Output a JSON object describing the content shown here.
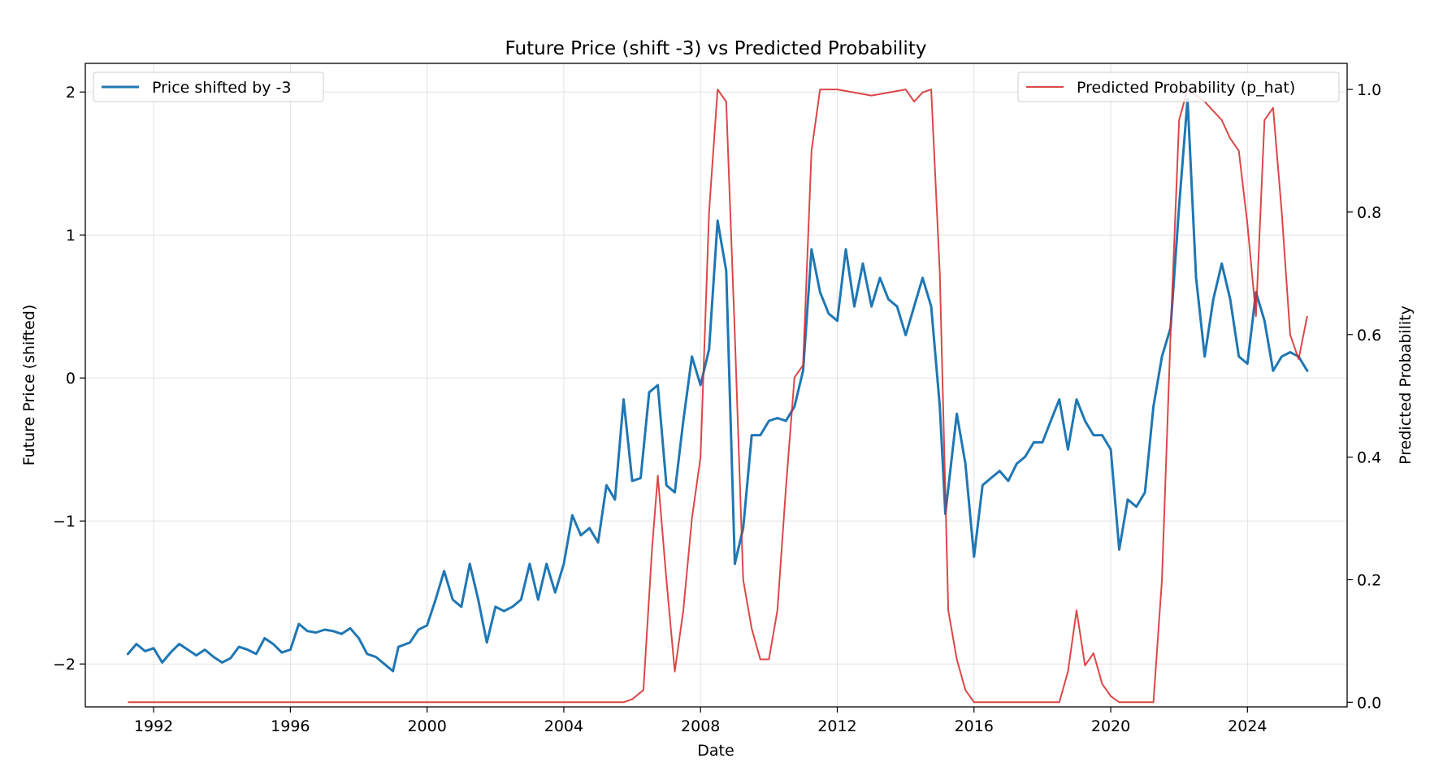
{
  "chart_data": {
    "type": "line",
    "title": "Future Price (shift -3) vs Predicted Probability",
    "xlabel": "Date",
    "ylabel": "Future Price (shifted)",
    "ylabel_right": "Predicted Probability",
    "xlim": [
      "1990-01-01",
      "2026-12-01"
    ],
    "ylim": [
      -2.3,
      2.2
    ],
    "ylim_right": [
      -0.0075,
      1.0425
    ],
    "x_ticks": [
      "1992",
      "1996",
      "2000",
      "2004",
      "2008",
      "2012",
      "2016",
      "2020",
      "2024"
    ],
    "y_ticks": [
      "−2",
      "−1",
      "0",
      "1",
      "2"
    ],
    "y_tick_values": [
      -2,
      -1,
      0,
      1,
      2
    ],
    "y_ticks_right": [
      "0.0",
      "0.2",
      "0.4",
      "0.6",
      "0.8",
      "1.0"
    ],
    "y_tick_values_right": [
      0,
      0.2,
      0.4,
      0.6,
      0.8,
      1.0
    ],
    "grid": true,
    "legend_left": {
      "placement": "upper-left",
      "label": "Price shifted by -3"
    },
    "legend_right": {
      "placement": "upper-right",
      "label": "Predicted Probability (p_hat)"
    },
    "colors": {
      "price": "#1f77b4",
      "probability": "#d62728"
    },
    "series": [
      {
        "name": "Price shifted by -3",
        "axis": "left",
        "points": [
          [
            "1991-04-01",
            -1.93
          ],
          [
            "1991-07-01",
            -1.86
          ],
          [
            "1991-10-01",
            -1.91
          ],
          [
            "1992-01-01",
            -1.89
          ],
          [
            "1992-04-01",
            -1.99
          ],
          [
            "1992-07-01",
            -1.92
          ],
          [
            "1992-10-01",
            -1.86
          ],
          [
            "1993-01-01",
            -1.9
          ],
          [
            "1993-04-01",
            -1.94
          ],
          [
            "1993-07-01",
            -1.9
          ],
          [
            "1993-10-01",
            -1.95
          ],
          [
            "1994-01-01",
            -1.99
          ],
          [
            "1994-04-01",
            -1.96
          ],
          [
            "1994-07-01",
            -1.88
          ],
          [
            "1994-10-01",
            -1.9
          ],
          [
            "1995-01-01",
            -1.93
          ],
          [
            "1995-04-01",
            -1.82
          ],
          [
            "1995-07-01",
            -1.86
          ],
          [
            "1995-10-01",
            -1.92
          ],
          [
            "1996-01-01",
            -1.9
          ],
          [
            "1996-04-01",
            -1.72
          ],
          [
            "1996-07-01",
            -1.77
          ],
          [
            "1996-10-01",
            -1.78
          ],
          [
            "1997-01-01",
            -1.76
          ],
          [
            "1997-04-01",
            -1.77
          ],
          [
            "1997-07-01",
            -1.79
          ],
          [
            "1997-10-01",
            -1.75
          ],
          [
            "1998-01-01",
            -1.82
          ],
          [
            "1998-04-01",
            -1.93
          ],
          [
            "1998-07-01",
            -1.95
          ],
          [
            "1998-10-01",
            -2.0
          ],
          [
            "1999-01-01",
            -2.05
          ],
          [
            "1999-03-01",
            -1.88
          ],
          [
            "1999-07-01",
            -1.85
          ],
          [
            "1999-10-01",
            -1.76
          ],
          [
            "2000-01-01",
            -1.73
          ],
          [
            "2000-04-01",
            -1.55
          ],
          [
            "2000-07-01",
            -1.35
          ],
          [
            "2000-10-01",
            -1.55
          ],
          [
            "2001-01-01",
            -1.6
          ],
          [
            "2001-04-01",
            -1.3
          ],
          [
            "2001-07-01",
            -1.55
          ],
          [
            "2001-10-01",
            -1.85
          ],
          [
            "2002-01-01",
            -1.6
          ],
          [
            "2002-04-01",
            -1.63
          ],
          [
            "2002-07-01",
            -1.6
          ],
          [
            "2002-10-01",
            -1.55
          ],
          [
            "2003-01-01",
            -1.3
          ],
          [
            "2003-04-01",
            -1.55
          ],
          [
            "2003-07-01",
            -1.3
          ],
          [
            "2003-10-01",
            -1.5
          ],
          [
            "2004-01-01",
            -1.3
          ],
          [
            "2004-04-01",
            -0.96
          ],
          [
            "2004-07-01",
            -1.1
          ],
          [
            "2004-10-01",
            -1.05
          ],
          [
            "2005-01-01",
            -1.15
          ],
          [
            "2005-04-01",
            -0.75
          ],
          [
            "2005-07-01",
            -0.85
          ],
          [
            "2005-10-01",
            -0.15
          ],
          [
            "2006-01-01",
            -0.72
          ],
          [
            "2006-04-01",
            -0.7
          ],
          [
            "2006-07-01",
            -0.1
          ],
          [
            "2006-10-01",
            -0.05
          ],
          [
            "2007-01-01",
            -0.75
          ],
          [
            "2007-04-01",
            -0.8
          ],
          [
            "2007-07-01",
            -0.3
          ],
          [
            "2007-10-01",
            0.15
          ],
          [
            "2008-01-01",
            -0.05
          ],
          [
            "2008-04-01",
            0.2
          ],
          [
            "2008-07-01",
            1.1
          ],
          [
            "2008-10-01",
            0.75
          ],
          [
            "2009-01-01",
            -1.3
          ],
          [
            "2009-04-01",
            -1.05
          ],
          [
            "2009-07-01",
            -0.4
          ],
          [
            "2009-10-01",
            -0.4
          ],
          [
            "2010-01-01",
            -0.3
          ],
          [
            "2010-04-01",
            -0.28
          ],
          [
            "2010-07-01",
            -0.3
          ],
          [
            "2010-10-01",
            -0.2
          ],
          [
            "2011-01-01",
            0.05
          ],
          [
            "2011-04-01",
            0.9
          ],
          [
            "2011-07-01",
            0.6
          ],
          [
            "2011-10-01",
            0.45
          ],
          [
            "2012-01-01",
            0.4
          ],
          [
            "2012-04-01",
            0.9
          ],
          [
            "2012-07-01",
            0.5
          ],
          [
            "2012-10-01",
            0.8
          ],
          [
            "2013-01-01",
            0.5
          ],
          [
            "2013-04-01",
            0.7
          ],
          [
            "2013-07-01",
            0.55
          ],
          [
            "2013-10-01",
            0.5
          ],
          [
            "2014-01-01",
            0.3
          ],
          [
            "2014-04-01",
            0.5
          ],
          [
            "2014-07-01",
            0.7
          ],
          [
            "2014-10-01",
            0.5
          ],
          [
            "2015-01-01",
            -0.2
          ],
          [
            "2015-03-01",
            -0.95
          ],
          [
            "2015-07-01",
            -0.25
          ],
          [
            "2015-10-01",
            -0.6
          ],
          [
            "2016-01-01",
            -1.25
          ],
          [
            "2016-04-01",
            -0.75
          ],
          [
            "2016-07-01",
            -0.7
          ],
          [
            "2016-10-01",
            -0.65
          ],
          [
            "2017-01-01",
            -0.72
          ],
          [
            "2017-04-01",
            -0.6
          ],
          [
            "2017-07-01",
            -0.55
          ],
          [
            "2017-10-01",
            -0.45
          ],
          [
            "2018-01-01",
            -0.45
          ],
          [
            "2018-04-01",
            -0.3
          ],
          [
            "2018-07-01",
            -0.15
          ],
          [
            "2018-10-01",
            -0.5
          ],
          [
            "2019-01-01",
            -0.15
          ],
          [
            "2019-04-01",
            -0.3
          ],
          [
            "2019-07-01",
            -0.4
          ],
          [
            "2019-10-01",
            -0.4
          ],
          [
            "2020-01-01",
            -0.5
          ],
          [
            "2020-04-01",
            -1.2
          ],
          [
            "2020-07-01",
            -0.85
          ],
          [
            "2020-10-01",
            -0.9
          ],
          [
            "2021-01-01",
            -0.8
          ],
          [
            "2021-04-01",
            -0.2
          ],
          [
            "2021-07-01",
            0.15
          ],
          [
            "2021-10-01",
            0.35
          ],
          [
            "2022-01-01",
            1.2
          ],
          [
            "2022-04-01",
            1.95
          ],
          [
            "2022-07-01",
            0.7
          ],
          [
            "2022-10-01",
            0.15
          ],
          [
            "2023-01-01",
            0.55
          ],
          [
            "2023-04-01",
            0.8
          ],
          [
            "2023-07-01",
            0.55
          ],
          [
            "2023-10-01",
            0.15
          ],
          [
            "2024-01-01",
            0.1
          ],
          [
            "2024-04-01",
            0.6
          ],
          [
            "2024-07-01",
            0.4
          ],
          [
            "2024-10-01",
            0.05
          ],
          [
            "2025-01-01",
            0.15
          ],
          [
            "2025-04-01",
            0.18
          ],
          [
            "2025-07-01",
            0.15
          ],
          [
            "2025-10-01",
            0.05
          ]
        ]
      },
      {
        "name": "Predicted Probability (p_hat)",
        "axis": "right",
        "points": [
          [
            "1991-04-01",
            0.0
          ],
          [
            "2005-10-01",
            0.0
          ],
          [
            "2006-01-01",
            0.005
          ],
          [
            "2006-05-01",
            0.02
          ],
          [
            "2006-08-01",
            0.25
          ],
          [
            "2006-10-01",
            0.37
          ],
          [
            "2007-01-01",
            0.2
          ],
          [
            "2007-04-01",
            0.05
          ],
          [
            "2007-07-01",
            0.15
          ],
          [
            "2007-10-01",
            0.3
          ],
          [
            "2008-01-01",
            0.4
          ],
          [
            "2008-04-01",
            0.8
          ],
          [
            "2008-07-01",
            1.0
          ],
          [
            "2008-10-01",
            0.98
          ],
          [
            "2009-01-01",
            0.6
          ],
          [
            "2009-04-01",
            0.2
          ],
          [
            "2009-07-01",
            0.12
          ],
          [
            "2009-10-01",
            0.07
          ],
          [
            "2010-01-01",
            0.07
          ],
          [
            "2010-04-01",
            0.15
          ],
          [
            "2010-07-01",
            0.35
          ],
          [
            "2010-10-01",
            0.53
          ],
          [
            "2011-01-01",
            0.55
          ],
          [
            "2011-04-01",
            0.9
          ],
          [
            "2011-07-01",
            1.0
          ],
          [
            "2012-01-01",
            1.0
          ],
          [
            "2013-01-01",
            0.99
          ],
          [
            "2014-01-01",
            1.0
          ],
          [
            "2014-04-01",
            0.98
          ],
          [
            "2014-07-01",
            0.995
          ],
          [
            "2014-10-01",
            1.0
          ],
          [
            "2015-01-01",
            0.7
          ],
          [
            "2015-04-01",
            0.15
          ],
          [
            "2015-07-01",
            0.07
          ],
          [
            "2015-10-01",
            0.02
          ],
          [
            "2016-01-01",
            0.0
          ],
          [
            "2018-07-01",
            0.0
          ],
          [
            "2018-10-01",
            0.05
          ],
          [
            "2019-01-01",
            0.15
          ],
          [
            "2019-04-01",
            0.06
          ],
          [
            "2019-07-01",
            0.08
          ],
          [
            "2019-10-01",
            0.03
          ],
          [
            "2020-01-01",
            0.01
          ],
          [
            "2020-04-01",
            0.0
          ],
          [
            "2021-04-01",
            0.0
          ],
          [
            "2021-07-01",
            0.2
          ],
          [
            "2021-10-01",
            0.6
          ],
          [
            "2022-01-01",
            0.95
          ],
          [
            "2022-04-01",
            1.0
          ],
          [
            "2022-10-01",
            0.98
          ],
          [
            "2023-04-01",
            0.95
          ],
          [
            "2023-07-01",
            0.92
          ],
          [
            "2023-10-01",
            0.9
          ],
          [
            "2024-01-01",
            0.78
          ],
          [
            "2024-04-01",
            0.63
          ],
          [
            "2024-07-01",
            0.95
          ],
          [
            "2024-10-01",
            0.97
          ],
          [
            "2025-01-01",
            0.8
          ],
          [
            "2025-04-01",
            0.6
          ],
          [
            "2025-07-01",
            0.56
          ],
          [
            "2025-10-01",
            0.63
          ]
        ]
      }
    ]
  }
}
